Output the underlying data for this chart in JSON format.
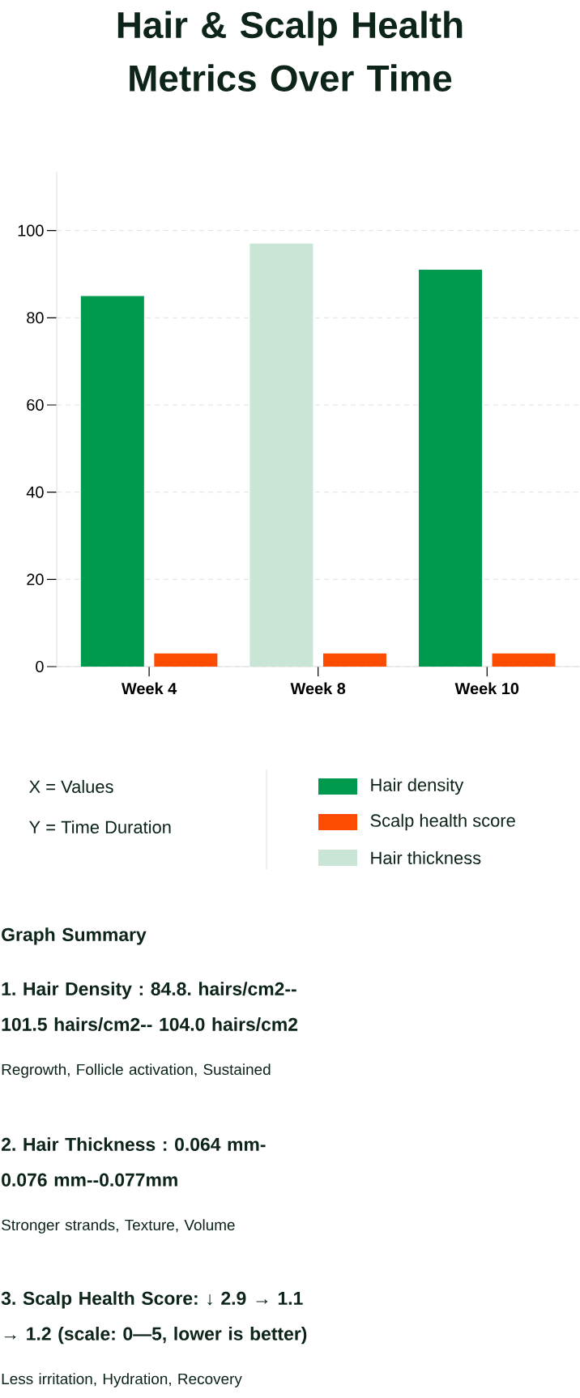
{
  "chart_data": {
    "type": "bar",
    "title": "Hair & Scalp Health Metrics Over Time",
    "categories": [
      "Week 4",
      "Week 8",
      "Week 10"
    ],
    "series": [
      {
        "name": "Hair density",
        "color": "#009a4e",
        "values": [
          85,
          null,
          91
        ]
      },
      {
        "name": "Scalp health score",
        "color": "#fc4c02",
        "values": [
          3,
          3,
          3
        ]
      },
      {
        "name": "Hair thickness",
        "color": "#c8e5d6",
        "values": [
          null,
          97,
          null
        ]
      }
    ],
    "ylim": [
      0,
      113.5
    ],
    "yticks": [
      0,
      20,
      40,
      60,
      80,
      100
    ],
    "grid": "y",
    "legend": "bottom",
    "annotations": [
      "X = Values",
      "Y = Time Duration",
      "Graph Summary",
      "1. Hair Density : 84.8. hairs/cm2-- 101.5 hairs/cm2-- 104.0 hairs/cm2",
      "Regrowth, Follicle activation, Sustained",
      "2. Hair Thickness : 0.064 mm- 0.076 mm--0.077mm",
      "Stronger strands, Texture, Volume",
      "3. Scalp Health Score: ↓ 2.9 → 1.1 → 1.2 (scale: 0—5, lower is better)",
      "Less irritation, Hydration, Recovery"
    ]
  }
}
